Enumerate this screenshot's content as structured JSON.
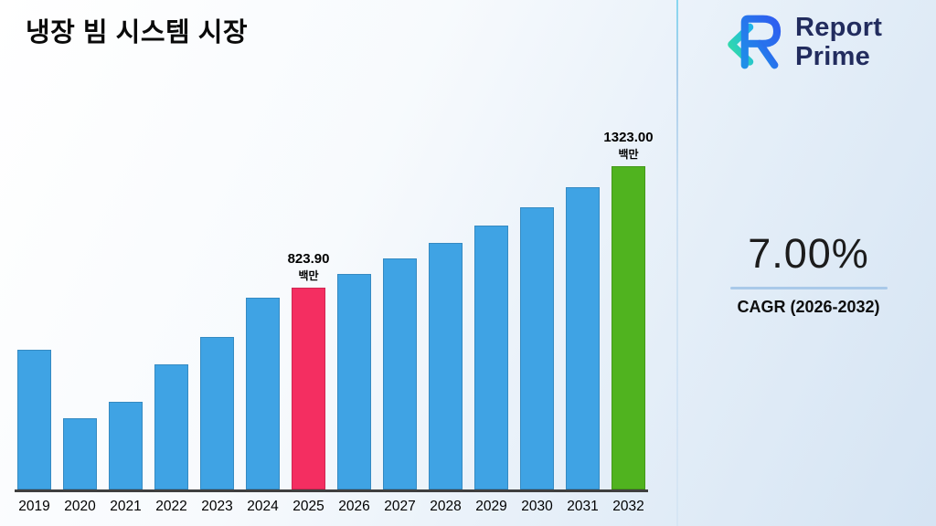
{
  "page": {
    "title": "냉장 빔 시스템 시장"
  },
  "logo": {
    "name1": "Report",
    "name2": "Prime"
  },
  "cagr": {
    "value": "7.00%",
    "label": "CAGR (2026-2032)"
  },
  "chart_data": {
    "type": "bar",
    "title": "냉장 빔 시스템 시장",
    "categories": [
      "2019",
      "2020",
      "2021",
      "2022",
      "2023",
      "2024",
      "2025",
      "2026",
      "2027",
      "2028",
      "2029",
      "2030",
      "2031",
      "2032"
    ],
    "values": [
      573,
      292,
      358,
      510,
      624,
      783,
      823.9,
      881.6,
      943.3,
      1009.3,
      1080.0,
      1155.6,
      1236.4,
      1323.0
    ],
    "unit": "백만",
    "xlabel": "",
    "ylabel": "",
    "ylim": [
      0,
      1400
    ],
    "grid": false,
    "legend": false,
    "annotations": [
      {
        "year": "2025",
        "text": "823.90",
        "unit": "백만"
      },
      {
        "year": "2032",
        "text": "1323.00",
        "unit": "백만"
      }
    ],
    "colors": {
      "default": "#3FA3E4",
      "by_year": {
        "2025": "#F42E61",
        "2032": "#50B31F"
      }
    }
  }
}
